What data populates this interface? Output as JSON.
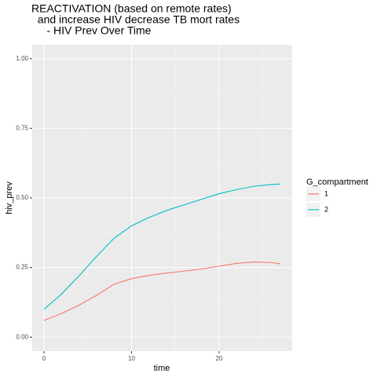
{
  "chart_data": {
    "type": "line",
    "title": [
      "REACTIVATION (based on remote rates)",
      "  and increase HIV decrease TB mort rates",
      "     - HIV Prev Over Time"
    ],
    "x_label": "time",
    "y_label": "hiv_prev",
    "legend_title": "G_compartment",
    "legend": "right",
    "grid": true,
    "x": [
      0,
      2,
      4,
      6,
      8,
      10,
      12,
      14,
      16,
      18,
      20,
      22,
      24,
      26,
      27
    ],
    "series": [
      {
        "name": "1",
        "color": "#F8766D",
        "values": [
          0.06,
          0.085,
          0.115,
          0.15,
          0.19,
          0.21,
          0.222,
          0.23,
          0.237,
          0.245,
          0.255,
          0.265,
          0.27,
          0.268,
          0.263
        ]
      },
      {
        "name": "2",
        "color": "#00BFC4",
        "values": [
          0.1,
          0.155,
          0.22,
          0.29,
          0.355,
          0.4,
          0.43,
          0.455,
          0.475,
          0.495,
          0.515,
          0.53,
          0.542,
          0.548,
          0.55
        ]
      }
    ],
    "xlim": [
      -1.35,
      28.35
    ],
    "xticks": [
      0,
      10,
      20
    ],
    "xminorticks": [
      5,
      15,
      25
    ],
    "ylim": [
      -0.05,
      1.05
    ],
    "yticks": [
      {
        "value": 0,
        "label": "0.00"
      },
      {
        "value": 0.25,
        "label": "0.25"
      },
      {
        "value": 0.5,
        "label": "0.50"
      },
      {
        "value": 0.75,
        "label": "0.75"
      },
      {
        "value": 1,
        "label": "1.00"
      }
    ],
    "yminorticks": [
      0.125,
      0.375,
      0.625,
      0.875
    ]
  }
}
